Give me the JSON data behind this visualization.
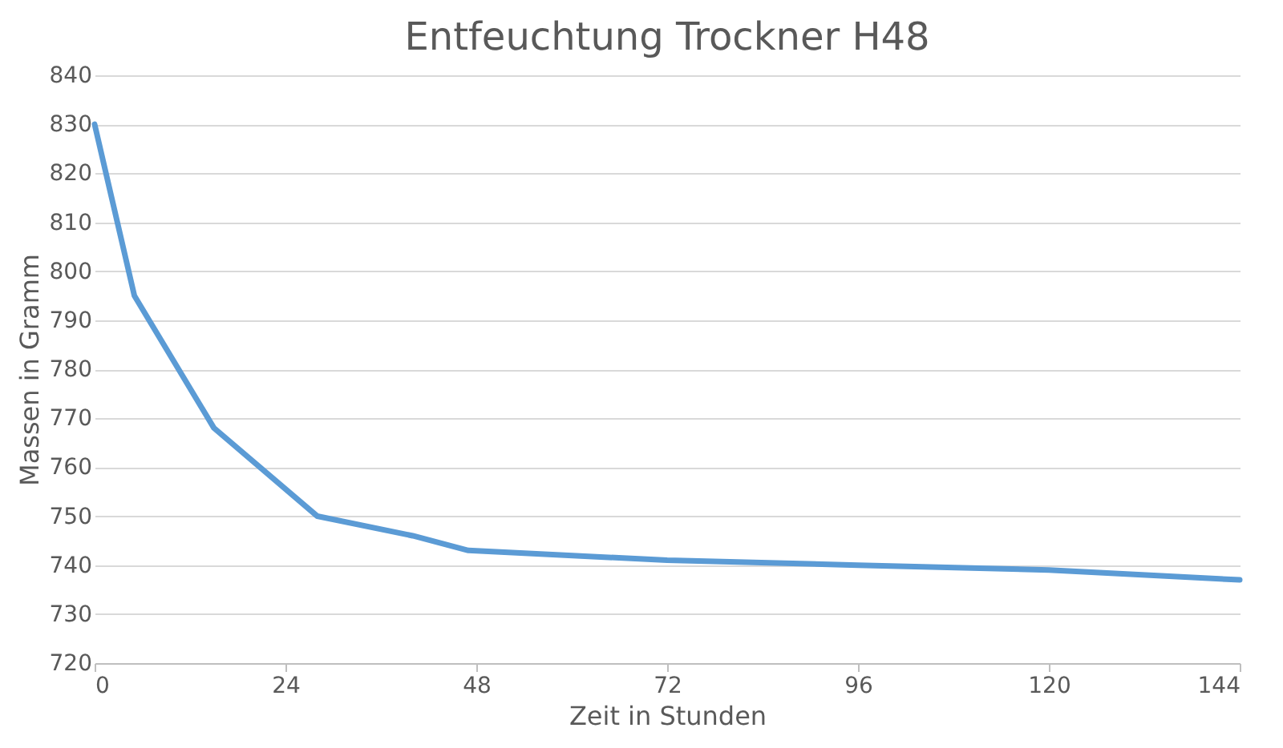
{
  "chart_data": {
    "type": "line",
    "title": "Entfeuchtung Trockner H48",
    "xlabel": "Zeit in Stunden",
    "ylabel": "Massen in Gramm",
    "x": [
      0,
      5,
      15,
      28,
      40,
      47,
      72,
      96,
      120,
      144
    ],
    "series": [
      {
        "color": "#5b9bd5",
        "values": [
          830,
          795,
          768,
          750,
          746,
          743,
          741,
          740,
          739,
          737
        ]
      }
    ],
    "xlim": [
      0,
      144
    ],
    "xticks": [
      0,
      24,
      48,
      72,
      96,
      120,
      144
    ],
    "ylim": [
      720,
      840
    ],
    "yticks": [
      720,
      730,
      740,
      750,
      760,
      770,
      780,
      790,
      800,
      810,
      820,
      830,
      840
    ],
    "grid": "y",
    "marker": "none",
    "line_style": "solid",
    "legend": false
  }
}
